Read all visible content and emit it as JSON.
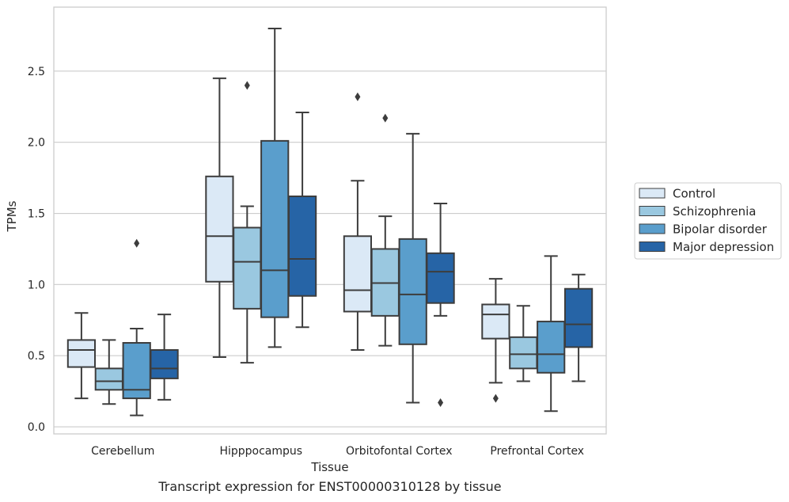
{
  "caption": "Transcript expression for ENST00000310128 by tissue",
  "chart_data": {
    "type": "box",
    "xlabel": "Tissue",
    "ylabel": "TPMs",
    "ylim": [
      -0.05,
      2.95
    ],
    "yticks": [
      0.0,
      0.5,
      1.0,
      1.5,
      2.0,
      2.5
    ],
    "ytick_labels": [
      "0.0",
      "0.5",
      "1.0",
      "1.5",
      "2.0",
      "2.5"
    ],
    "grid": true,
    "legend_position": "right",
    "categories": [
      "Cerebellum",
      "Hipppocampus",
      "Orbitofontal Cortex",
      "Prefrontal Cortex"
    ],
    "series": [
      {
        "name": "Control",
        "color": "#dbe9f6",
        "boxes": [
          {
            "whislo": 0.2,
            "q1": 0.42,
            "med": 0.54,
            "q3": 0.61,
            "whishi": 0.8,
            "fliers": []
          },
          {
            "whislo": 0.49,
            "q1": 1.02,
            "med": 1.34,
            "q3": 1.76,
            "whishi": 2.45,
            "fliers": []
          },
          {
            "whislo": 0.54,
            "q1": 0.81,
            "med": 0.96,
            "q3": 1.34,
            "whishi": 1.73,
            "fliers": [
              2.32
            ]
          },
          {
            "whislo": 0.31,
            "q1": 0.62,
            "med": 0.79,
            "q3": 0.86,
            "whishi": 1.04,
            "fliers": [
              0.2
            ]
          }
        ]
      },
      {
        "name": "Schizophrenia",
        "color": "#9ac8e0",
        "boxes": [
          {
            "whislo": 0.16,
            "q1": 0.26,
            "med": 0.32,
            "q3": 0.41,
            "whishi": 0.61,
            "fliers": []
          },
          {
            "whislo": 0.45,
            "q1": 0.83,
            "med": 1.16,
            "q3": 1.4,
            "whishi": 1.55,
            "fliers": [
              2.4
            ]
          },
          {
            "whislo": 0.57,
            "q1": 0.78,
            "med": 1.01,
            "q3": 1.25,
            "whishi": 1.48,
            "fliers": [
              2.17
            ]
          },
          {
            "whislo": 0.32,
            "q1": 0.41,
            "med": 0.51,
            "q3": 0.63,
            "whishi": 0.85,
            "fliers": []
          }
        ]
      },
      {
        "name": "Bipolar disorder",
        "color": "#5a9ecc",
        "boxes": [
          {
            "whislo": 0.08,
            "q1": 0.2,
            "med": 0.26,
            "q3": 0.59,
            "whishi": 0.69,
            "fliers": [
              1.29
            ]
          },
          {
            "whislo": 0.56,
            "q1": 0.77,
            "med": 1.1,
            "q3": 2.01,
            "whishi": 2.8,
            "fliers": []
          },
          {
            "whislo": 0.17,
            "q1": 0.58,
            "med": 0.93,
            "q3": 1.32,
            "whishi": 2.06,
            "fliers": []
          },
          {
            "whislo": 0.11,
            "q1": 0.38,
            "med": 0.51,
            "q3": 0.74,
            "whishi": 1.2,
            "fliers": []
          }
        ]
      },
      {
        "name": "Major depression",
        "color": "#2664a6",
        "boxes": [
          {
            "whislo": 0.19,
            "q1": 0.34,
            "med": 0.41,
            "q3": 0.54,
            "whishi": 0.79,
            "fliers": []
          },
          {
            "whislo": 0.7,
            "q1": 0.92,
            "med": 1.18,
            "q3": 1.62,
            "whishi": 2.21,
            "fliers": []
          },
          {
            "whislo": 0.78,
            "q1": 0.87,
            "med": 1.09,
            "q3": 1.22,
            "whishi": 1.57,
            "fliers": [
              0.17
            ]
          },
          {
            "whislo": 0.32,
            "q1": 0.56,
            "med": 0.72,
            "q3": 0.97,
            "whishi": 1.07,
            "fliers": []
          }
        ]
      }
    ]
  }
}
